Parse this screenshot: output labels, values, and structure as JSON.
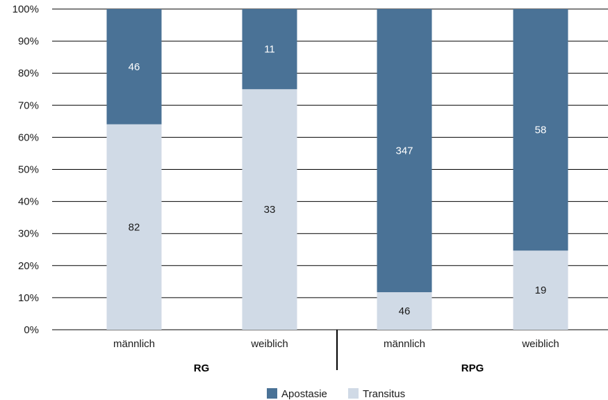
{
  "chart_data": {
    "type": "bar",
    "stacked": "percent",
    "title": "",
    "xlabel": "",
    "ylabel": "",
    "ylim": [
      0,
      100
    ],
    "y_ticks": [
      "0%",
      "10%",
      "20%",
      "30%",
      "40%",
      "50%",
      "60%",
      "70%",
      "80%",
      "90%",
      "100%"
    ],
    "grid": true,
    "legend_position": "bottom",
    "groups": [
      {
        "label": "RG",
        "categories": [
          "männlich",
          "weiblich"
        ]
      },
      {
        "label": "RPG",
        "categories": [
          "männlich",
          "weiblich"
        ]
      }
    ],
    "categories": [
      "männlich",
      "weiblich",
      "männlich",
      "weiblich"
    ],
    "series": [
      {
        "name": "Transitus",
        "color": "#d0dae6",
        "label_color": "#1a1a1a",
        "values": [
          82,
          33,
          46,
          19
        ]
      },
      {
        "name": "Apostasie",
        "color": "#4a7296",
        "label_color": "#ffffff",
        "values": [
          46,
          11,
          347,
          58
        ]
      }
    ],
    "legend_order": [
      "Apostasie",
      "Transitus"
    ]
  }
}
